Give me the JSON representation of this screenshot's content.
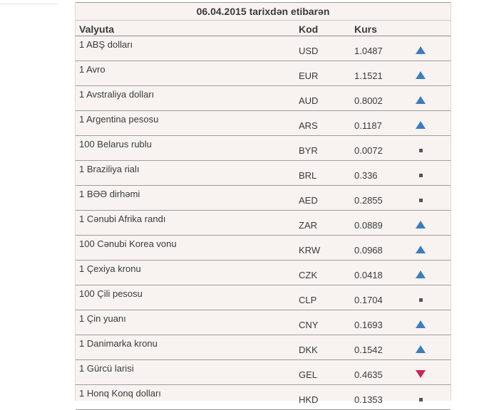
{
  "table": {
    "date_heading": "06.04.2015 tarixdən etibarən",
    "columns": {
      "currency": "Valyuta",
      "code": "Kod",
      "rate": "Kurs"
    },
    "rows": [
      {
        "name": "1 ABŞ dolları",
        "code": "USD",
        "rate": "1.0487",
        "trend": "up"
      },
      {
        "name": "1 Avro",
        "code": "EUR",
        "rate": "1.1521",
        "trend": "up"
      },
      {
        "name": "1 Avstraliya dolları",
        "code": "AUD",
        "rate": "0.8002",
        "trend": "up"
      },
      {
        "name": "1 Argentina pesosu",
        "code": "ARS",
        "rate": "0.1187",
        "trend": "up"
      },
      {
        "name": "100 Belarus rublu",
        "code": "BYR",
        "rate": "0.0072",
        "trend": "same"
      },
      {
        "name": "1 Braziliya rialı",
        "code": "BRL",
        "rate": "0.336",
        "trend": "same"
      },
      {
        "name": "1 BƏƏ dirhəmi",
        "code": "AED",
        "rate": "0.2855",
        "trend": "same"
      },
      {
        "name": "1 Cənubi Afrika randı",
        "code": "ZAR",
        "rate": "0.0889",
        "trend": "up"
      },
      {
        "name": "100 Cənubi Korea vonu",
        "code": "KRW",
        "rate": "0.0968",
        "trend": "up"
      },
      {
        "name": "1 Çexiya kronu",
        "code": "CZK",
        "rate": "0.0418",
        "trend": "up"
      },
      {
        "name": "100 Çili pesosu",
        "code": "CLP",
        "rate": "0.1704",
        "trend": "same"
      },
      {
        "name": "1 Çin yuanı",
        "code": "CNY",
        "rate": "0.1693",
        "trend": "up"
      },
      {
        "name": "1 Danimarka kronu",
        "code": "DKK",
        "rate": "0.1542",
        "trend": "up"
      },
      {
        "name": "1 Gürcü larisi",
        "code": "GEL",
        "rate": "0.4635",
        "trend": "down"
      },
      {
        "name": "1 Honq Konq dolları",
        "code": "HKD",
        "rate": "0.1353",
        "trend": "same"
      }
    ]
  },
  "icons": {
    "up": "triangle-up-icon",
    "down": "triangle-down-icon",
    "same": "square-icon"
  },
  "colors": {
    "up": "#3b7ec0",
    "down": "#c5265a",
    "same": "#555555",
    "panel_background": "#f8f3f0"
  }
}
